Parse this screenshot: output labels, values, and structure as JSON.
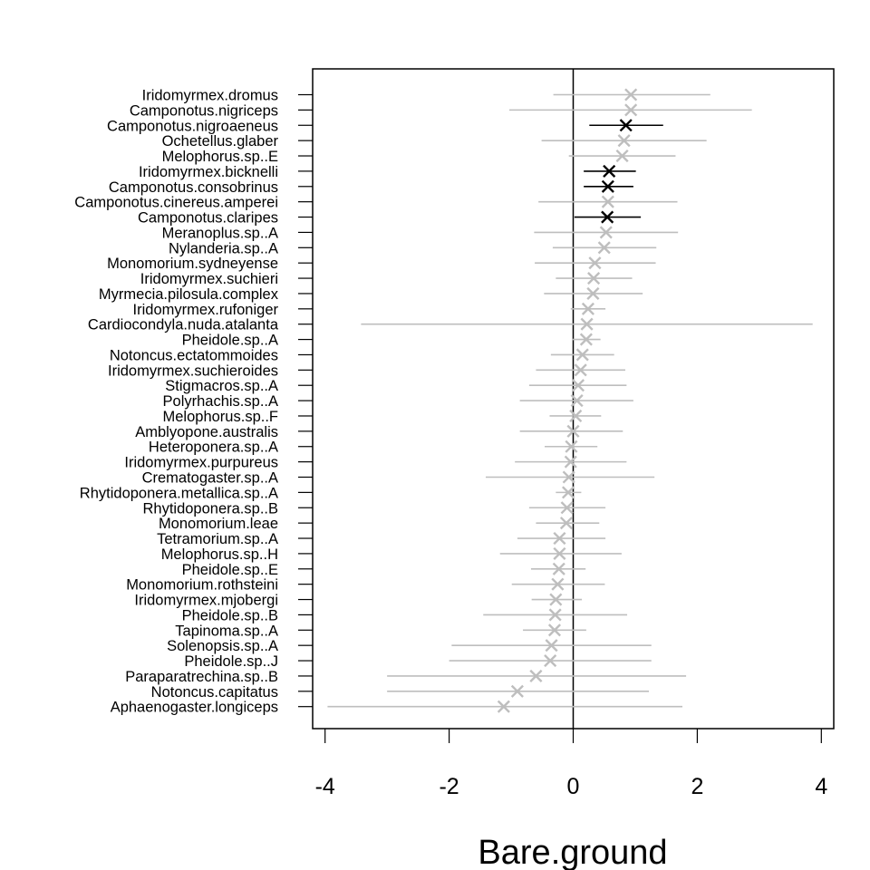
{
  "chart_data": {
    "type": "forest",
    "xlabel": "Bare.ground",
    "xlim": [
      -4.2,
      4.2
    ],
    "xticks": [
      -4,
      -2,
      0,
      2,
      4
    ],
    "xtick_labels": [
      "-4",
      "-2",
      "0",
      "2",
      "4"
    ],
    "reference_line_x": 0,
    "grid": false,
    "colors": {
      "significant": "#000000",
      "not_significant": "#bebebe"
    },
    "marker": "x",
    "species": [
      {
        "name": "Iridomyrmex.dromus",
        "estimate": 0.93,
        "lower": -0.32,
        "upper": 2.21,
        "significant": false
      },
      {
        "name": "Camponotus.nigriceps",
        "estimate": 0.93,
        "lower": -1.03,
        "upper": 2.88,
        "significant": false
      },
      {
        "name": "Camponotus.nigroaeneus",
        "estimate": 0.85,
        "lower": 0.26,
        "upper": 1.45,
        "significant": true
      },
      {
        "name": "Ochetellus.glaber",
        "estimate": 0.82,
        "lower": -0.51,
        "upper": 2.15,
        "significant": false
      },
      {
        "name": "Melophorus.sp..E",
        "estimate": 0.79,
        "lower": -0.07,
        "upper": 1.65,
        "significant": false
      },
      {
        "name": "Iridomyrmex.bicknelli",
        "estimate": 0.58,
        "lower": 0.17,
        "upper": 1.01,
        "significant": true
      },
      {
        "name": "Camponotus.consobrinus",
        "estimate": 0.56,
        "lower": 0.17,
        "upper": 0.97,
        "significant": true
      },
      {
        "name": "Camponotus.cinereus.amperei",
        "estimate": 0.56,
        "lower": -0.56,
        "upper": 1.68,
        "significant": false
      },
      {
        "name": "Camponotus.claripes",
        "estimate": 0.55,
        "lower": 0.02,
        "upper": 1.09,
        "significant": true
      },
      {
        "name": "Meranoplus.sp..A",
        "estimate": 0.53,
        "lower": -0.63,
        "upper": 1.69,
        "significant": false
      },
      {
        "name": "Nylanderia.sp..A",
        "estimate": 0.5,
        "lower": -0.33,
        "upper": 1.34,
        "significant": false
      },
      {
        "name": "Monomorium.sydneyense",
        "estimate": 0.35,
        "lower": -0.62,
        "upper": 1.33,
        "significant": false
      },
      {
        "name": "Iridomyrmex.suchieri",
        "estimate": 0.33,
        "lower": -0.28,
        "upper": 0.95,
        "significant": false
      },
      {
        "name": "Myrmecia.pilosula.complex",
        "estimate": 0.32,
        "lower": -0.47,
        "upper": 1.12,
        "significant": false
      },
      {
        "name": "Iridomyrmex.rufoniger",
        "estimate": 0.24,
        "lower": -0.04,
        "upper": 0.52,
        "significant": false
      },
      {
        "name": "Cardiocondyla.nuda.atalanta",
        "estimate": 0.22,
        "lower": -3.42,
        "upper": 3.86,
        "significant": false
      },
      {
        "name": "Pheidole.sp..A",
        "estimate": 0.21,
        "lower": -0.02,
        "upper": 0.44,
        "significant": false
      },
      {
        "name": "Notoncus.ectatommoides",
        "estimate": 0.15,
        "lower": -0.36,
        "upper": 0.66,
        "significant": false
      },
      {
        "name": "Iridomyrmex.suchieroides",
        "estimate": 0.12,
        "lower": -0.6,
        "upper": 0.84,
        "significant": false
      },
      {
        "name": "Stigmacros.sp..A",
        "estimate": 0.08,
        "lower": -0.71,
        "upper": 0.86,
        "significant": false
      },
      {
        "name": "Polyrhachis.sp..A",
        "estimate": 0.06,
        "lower": -0.86,
        "upper": 0.97,
        "significant": false
      },
      {
        "name": "Melophorus.sp..F",
        "estimate": 0.04,
        "lower": -0.38,
        "upper": 0.45,
        "significant": false
      },
      {
        "name": "Amblyopone.australis",
        "estimate": 0.0,
        "lower": -0.86,
        "upper": 0.8,
        "significant": false
      },
      {
        "name": "Heteroponera.sp..A",
        "estimate": -0.03,
        "lower": -0.46,
        "upper": 0.39,
        "significant": false
      },
      {
        "name": "Iridomyrmex.purpureus",
        "estimate": -0.04,
        "lower": -0.94,
        "upper": 0.86,
        "significant": false
      },
      {
        "name": "Crematogaster.sp..A",
        "estimate": -0.07,
        "lower": -1.41,
        "upper": 1.31,
        "significant": false
      },
      {
        "name": "Rhytidoponera.metallica.sp..A",
        "estimate": -0.08,
        "lower": -0.28,
        "upper": 0.13,
        "significant": false
      },
      {
        "name": "Rhytidoponera.sp..B",
        "estimate": -0.1,
        "lower": -0.71,
        "upper": 0.52,
        "significant": false
      },
      {
        "name": "Monomorium.leae",
        "estimate": -0.11,
        "lower": -0.6,
        "upper": 0.42,
        "significant": false
      },
      {
        "name": "Tetramorium.sp..A",
        "estimate": -0.22,
        "lower": -0.9,
        "upper": 0.52,
        "significant": false
      },
      {
        "name": "Melophorus.sp..H",
        "estimate": -0.22,
        "lower": -1.18,
        "upper": 0.78,
        "significant": false
      },
      {
        "name": "Pheidole.sp..E",
        "estimate": -0.23,
        "lower": -0.68,
        "upper": 0.2,
        "significant": false
      },
      {
        "name": "Monomorium.rothsteini",
        "estimate": -0.25,
        "lower": -0.99,
        "upper": 0.51,
        "significant": false
      },
      {
        "name": "Iridomyrmex.mjobergi",
        "estimate": -0.28,
        "lower": -0.67,
        "upper": 0.14,
        "significant": false
      },
      {
        "name": "Pheidole.sp..B",
        "estimate": -0.29,
        "lower": -1.45,
        "upper": 0.87,
        "significant": false
      },
      {
        "name": "Tapinoma.sp..A",
        "estimate": -0.3,
        "lower": -0.81,
        "upper": 0.21,
        "significant": false
      },
      {
        "name": "Solenopsis.sp..A",
        "estimate": -0.35,
        "lower": -1.96,
        "upper": 1.26,
        "significant": false
      },
      {
        "name": "Pheidole.sp..J",
        "estimate": -0.37,
        "lower": -2.0,
        "upper": 1.26,
        "significant": false
      },
      {
        "name": "Paraparatrechina.sp..B",
        "estimate": -0.6,
        "lower": -3.0,
        "upper": 1.82,
        "significant": false
      },
      {
        "name": "Notoncus.capitatus",
        "estimate": -0.9,
        "lower": -3.0,
        "upper": 1.22,
        "significant": false
      },
      {
        "name": "Aphaenogaster.longiceps",
        "estimate": -1.12,
        "lower": -3.96,
        "upper": 1.76,
        "significant": false
      }
    ]
  }
}
